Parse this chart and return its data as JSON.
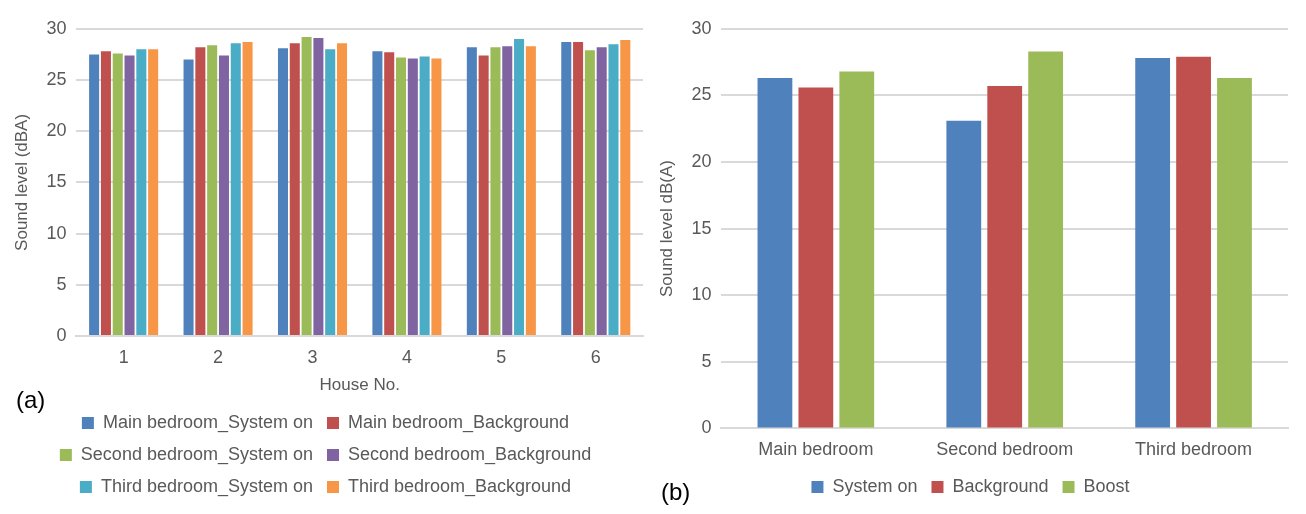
{
  "chart_data": [
    {
      "type": "bar",
      "categories": [
        "1",
        "2",
        "3",
        "4",
        "5",
        "6"
      ],
      "xlabel": "House No.",
      "ylabel": "Sound level (dBA)",
      "ylim": [
        0,
        30
      ],
      "yticks": [
        0,
        5,
        10,
        15,
        20,
        25,
        30
      ],
      "grid": "y",
      "legend": "bottom",
      "annotations": [
        "(a)"
      ],
      "series": [
        {
          "name": "Main bedroom_System on",
          "color": "#4f81bd",
          "values": [
            27.5,
            27.0,
            28.1,
            27.8,
            28.2,
            28.7
          ]
        },
        {
          "name": "Main bedroom_Background",
          "color": "#c0504d",
          "values": [
            27.8,
            28.2,
            28.6,
            27.7,
            27.4,
            28.7
          ]
        },
        {
          "name": "Second bedroom_System on",
          "color": "#9bbb59",
          "values": [
            27.6,
            28.4,
            29.2,
            27.2,
            28.2,
            27.9
          ]
        },
        {
          "name": "Second bedroom_Background",
          "color": "#8064a2",
          "values": [
            27.4,
            27.4,
            29.1,
            27.1,
            28.3,
            28.2
          ]
        },
        {
          "name": "Third bedroom_System on",
          "color": "#4bacc6",
          "values": [
            28.0,
            28.6,
            28.0,
            27.3,
            29.0,
            28.5
          ]
        },
        {
          "name": "Third bedroom_Background",
          "color": "#f79646",
          "values": [
            28.0,
            28.7,
            28.6,
            27.1,
            28.3,
            28.9
          ]
        }
      ]
    },
    {
      "type": "bar",
      "categories": [
        "Main bedroom",
        "Second bedroom",
        "Third bedroom"
      ],
      "ylabel": "Sound level dB(A)",
      "ylim": [
        0,
        30
      ],
      "yticks": [
        0,
        5,
        10,
        15,
        20,
        25,
        30
      ],
      "grid": "y",
      "legend": "bottom",
      "annotations": [
        "(b)"
      ],
      "series": [
        {
          "name": "System on",
          "color": "#4f81bd",
          "values": [
            26.3,
            23.1,
            27.8
          ]
        },
        {
          "name": "Background",
          "color": "#c0504d",
          "values": [
            25.6,
            25.7,
            27.9
          ]
        },
        {
          "name": "Boost",
          "color": "#9bbb59",
          "values": [
            26.8,
            28.3,
            26.3
          ]
        }
      ]
    }
  ]
}
